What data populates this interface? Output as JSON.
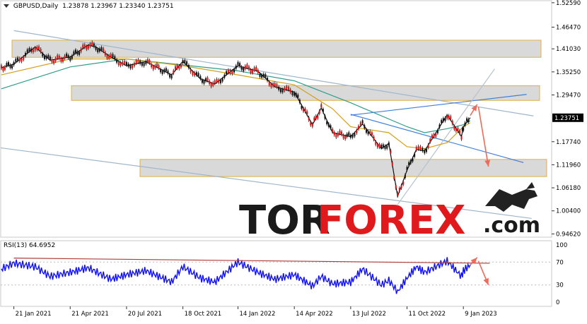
{
  "chart_data": {
    "type": "line",
    "symbol": "GBPUSD,Daily",
    "ohlc": [
      "1.23878",
      "1.23967",
      "1.23340",
      "1.23751"
    ],
    "price_axis": {
      "ticks": [
        1.5259,
        1.4647,
        1.4103,
        1.3525,
        1.2947,
        1.1774,
        1.1196,
        1.0618,
        1.004,
        0.9462
      ],
      "tick_labels": [
        "1.52590",
        "1.46470",
        "1.41030",
        "1.35250",
        "1.29470",
        "1.17740",
        "1.11960",
        "1.06180",
        "1.00400",
        "0.94620"
      ],
      "ylim": [
        0.938,
        1.531
      ],
      "current_price_label": "1.23751",
      "current_price": 1.23751
    },
    "time_axis": {
      "tick_labels": [
        "21 Jan 2021",
        "21 Apr 2021",
        "20 Jul 2021",
        "18 Oct 2021",
        "14 Jan 2022",
        "14 Apr 2022",
        "13 Jul 2022",
        "11 Oct 2022",
        "9 Jan 2023"
      ],
      "dates": [
        "2021-01-21",
        "2021-04-21",
        "2021-07-20",
        "2021-10-18",
        "2022-01-14",
        "2022-04-14",
        "2022-07-13",
        "2022-10-11",
        "2023-01-09"
      ],
      "xlim": [
        "2020-12-31",
        "2023-05-30"
      ]
    },
    "price_series": {
      "name": "GBPUSD",
      "dates": [
        "2021-01-01",
        "2021-01-21",
        "2021-02-24",
        "2021-03-20",
        "2021-04-21",
        "2021-05-20",
        "2021-06-01",
        "2021-06-25",
        "2021-07-20",
        "2021-08-20",
        "2021-09-30",
        "2021-10-18",
        "2021-11-15",
        "2021-12-08",
        "2022-01-14",
        "2022-02-15",
        "2022-03-14",
        "2022-04-14",
        "2022-05-13",
        "2022-05-27",
        "2022-06-14",
        "2022-07-13",
        "2022-08-01",
        "2022-08-31",
        "2022-09-12",
        "2022-09-26",
        "2022-10-11",
        "2022-10-26",
        "2022-11-08",
        "2022-12-14",
        "2023-01-06",
        "2023-01-09",
        "2023-01-20"
      ],
      "values": [
        1.363,
        1.372,
        1.415,
        1.382,
        1.39,
        1.42,
        1.415,
        1.39,
        1.368,
        1.378,
        1.345,
        1.379,
        1.335,
        1.322,
        1.368,
        1.354,
        1.315,
        1.302,
        1.22,
        1.262,
        1.2,
        1.19,
        1.222,
        1.16,
        1.173,
        1.04,
        1.106,
        1.158,
        1.154,
        1.245,
        1.19,
        1.215,
        1.2375
      ]
    },
    "ma_fast": {
      "dates": [
        "2021-01-01",
        "2021-04-21",
        "2021-07-20",
        "2021-10-18",
        "2022-01-14",
        "2022-04-14",
        "2022-06-14",
        "2022-07-13",
        "2022-09-12",
        "2022-10-11",
        "2022-11-08",
        "2022-12-14",
        "2023-01-09",
        "2023-01-20"
      ],
      "values": [
        1.345,
        1.385,
        1.385,
        1.368,
        1.345,
        1.32,
        1.26,
        1.215,
        1.2,
        1.165,
        1.16,
        1.175,
        1.215,
        1.225
      ],
      "color": "#d4a017"
    },
    "ma_slow": {
      "dates": [
        "2021-01-01",
        "2021-04-21",
        "2021-07-20",
        "2021-10-18",
        "2022-01-14",
        "2022-04-14",
        "2022-07-13",
        "2022-10-11",
        "2022-11-08",
        "2022-12-14",
        "2023-01-09",
        "2023-01-20"
      ],
      "values": [
        1.31,
        1.365,
        1.385,
        1.37,
        1.355,
        1.33,
        1.275,
        1.215,
        1.2,
        1.21,
        1.22,
        1.23
      ],
      "color": "#2e9e8a"
    },
    "zones": [
      {
        "from": 1.389,
        "to": 1.432
      },
      {
        "from": 1.281,
        "to": 1.318
      },
      {
        "from": 1.09,
        "to": 1.133
      }
    ],
    "trendlines": [
      {
        "from": [
          "2021-01-21",
          1.456
        ],
        "to": [
          "2023-05-01",
          1.242
        ],
        "color": "#9fb7cc"
      },
      {
        "from": [
          "2020-12-31",
          1.162
        ],
        "to": [
          "2023-04-28",
          0.985
        ],
        "color": "#9fb7cc"
      },
      {
        "from": [
          "2022-07-13",
          1.244
        ],
        "to": [
          "2023-04-20",
          1.296
        ],
        "color": "#3f7fd8"
      },
      {
        "from": [
          "2022-07-13",
          1.246
        ],
        "to": [
          "2023-04-15",
          1.125
        ],
        "color": "#3f7fd8"
      },
      {
        "from": [
          "2022-09-26",
          1.02
        ],
        "to": [
          "2023-02-28",
          1.36
        ],
        "color": "#b7c3cc"
      }
    ],
    "arrows": [
      {
        "from": [
          "2023-01-20",
          1.243
        ],
        "to": [
          "2023-01-31",
          1.271
        ]
      },
      {
        "from": [
          "2023-02-02",
          1.265
        ],
        "to": [
          "2023-02-18",
          1.115
        ]
      }
    ],
    "rsi": {
      "label": "RSI(13) 64.6952",
      "ylim": [
        0,
        100
      ],
      "tick_labels": [
        "100",
        "70",
        "30",
        "0"
      ],
      "levels": [
        100,
        70,
        30,
        0
      ],
      "dates": [
        "2021-01-01",
        "2021-01-21",
        "2021-02-24",
        "2021-03-20",
        "2021-04-21",
        "2021-05-20",
        "2021-06-25",
        "2021-07-20",
        "2021-08-20",
        "2021-09-30",
        "2021-10-18",
        "2021-11-15",
        "2021-12-08",
        "2022-01-14",
        "2022-02-15",
        "2022-03-14",
        "2022-04-14",
        "2022-05-13",
        "2022-05-27",
        "2022-06-14",
        "2022-07-13",
        "2022-08-01",
        "2022-08-31",
        "2022-09-12",
        "2022-09-26",
        "2022-10-11",
        "2022-10-26",
        "2022-11-08",
        "2022-12-14",
        "2023-01-06",
        "2023-01-09",
        "2023-01-20"
      ],
      "values": [
        58,
        68,
        62,
        45,
        52,
        60,
        40,
        48,
        55,
        35,
        62,
        42,
        35,
        70,
        52,
        40,
        48,
        28,
        45,
        32,
        35,
        58,
        30,
        38,
        18,
        42,
        62,
        52,
        72,
        45,
        55,
        65
      ],
      "color": "#1010ff",
      "resistance": {
        "from": [
          "2021-01-21",
          77
        ],
        "to": [
          "2023-02-20",
          68
        ]
      },
      "arrows": [
        {
          "from": [
            "2023-01-20",
            65
          ],
          "to": [
            "2023-01-31",
            78
          ]
        },
        {
          "from": [
            "2023-02-02",
            72
          ],
          "to": [
            "2023-02-18",
            30
          ]
        }
      ]
    }
  },
  "watermark": {
    "left": "TOR",
    "right": "FOREX",
    "suffix": ".com"
  }
}
